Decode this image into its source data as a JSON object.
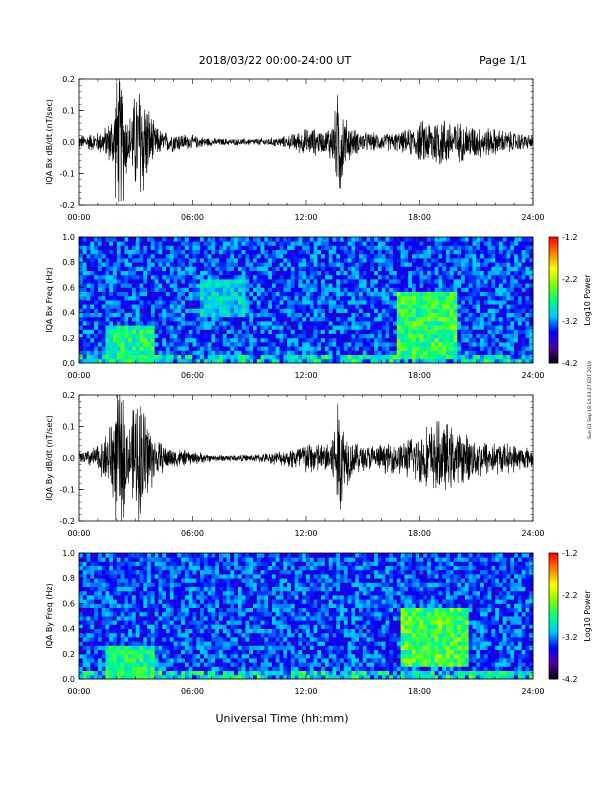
{
  "header": {
    "title": "2018/03/22  00:00-24:00 UT",
    "page": "Page 1/1"
  },
  "footer": {
    "xlabel": "Universal Time (hh:mm)",
    "side_note": "Sun 01 Sep 19:14:03:27 EDT 2019"
  },
  "chart_data": [
    {
      "type": "line",
      "name": "bx-waveform",
      "ylabel": "IQA Bx dB/dt (nT/sec)",
      "xlim": [
        0,
        24
      ],
      "ylim": [
        -0.2,
        0.2
      ],
      "x_ticks": [
        "00:00",
        "06:00",
        "12:00",
        "18:00",
        "24:00"
      ],
      "y_ticks": [
        "-0.2",
        "-0.1",
        "0.0",
        "0.1",
        "0.2"
      ],
      "y_tick_values": [
        -0.2,
        -0.1,
        0.0,
        0.1,
        0.2
      ],
      "envelope_hours": [
        0,
        0.5,
        1,
        1.5,
        1.8,
        2,
        2.3,
        2.6,
        3,
        3.3,
        3.6,
        4,
        4.5,
        5,
        6,
        7,
        8,
        9,
        10,
        11,
        11.5,
        12,
        12.5,
        13,
        13.5,
        13.8,
        14,
        14.5,
        15,
        16,
        17,
        17.5,
        18,
        18.5,
        19,
        19.5,
        20,
        21,
        22,
        23,
        24
      ],
      "envelope_amplitude": [
        0.02,
        0.025,
        0.03,
        0.05,
        0.09,
        0.2,
        0.2,
        0.06,
        0.16,
        0.2,
        0.12,
        0.05,
        0.03,
        0.03,
        0.02,
        0.012,
        0.01,
        0.01,
        0.012,
        0.018,
        0.03,
        0.04,
        0.04,
        0.03,
        0.08,
        0.2,
        0.08,
        0.04,
        0.03,
        0.025,
        0.03,
        0.04,
        0.06,
        0.07,
        0.08,
        0.07,
        0.06,
        0.05,
        0.04,
        0.03,
        0.02
      ]
    },
    {
      "type": "heatmap",
      "name": "bx-spectrogram",
      "ylabel": "IQA Bx Freq (Hz)",
      "xlim": [
        0,
        24
      ],
      "ylim": [
        0,
        1.0
      ],
      "x_ticks": [
        "00:00",
        "06:00",
        "12:00",
        "18:00",
        "24:00"
      ],
      "y_ticks": [
        "0.0",
        "0.2",
        "0.4",
        "0.6",
        "0.8",
        "1.0"
      ],
      "y_tick_values": [
        0,
        0.2,
        0.4,
        0.6,
        0.8,
        1.0
      ],
      "colorbar": {
        "label": "Log10 Power",
        "ticks": [
          "-1.2",
          "-2.2",
          "-3.2",
          "-4.2"
        ],
        "tick_values": [
          -1.2,
          -2.2,
          -3.2,
          -4.2
        ],
        "range": [
          -4.2,
          -1.2
        ],
        "colors": [
          "#000000",
          "#5000a0",
          "#0000ff",
          "#00c8ff",
          "#00ff80",
          "#80ff00",
          "#ffff00",
          "#ff8000",
          "#ff0000"
        ]
      },
      "features": [
        {
          "t0": 6.5,
          "t1": 8.8,
          "f0": 0.38,
          "f1": 0.68,
          "level": 0.45
        },
        {
          "t0": 16.8,
          "t1": 20.0,
          "f0": 0.05,
          "f1": 0.55,
          "level": 0.6
        },
        {
          "t0": 1.5,
          "t1": 4.0,
          "f0": 0.0,
          "f1": 0.3,
          "level": 0.55
        }
      ]
    },
    {
      "type": "line",
      "name": "by-waveform",
      "ylabel": "IQA By dB/dt (nT/sec)",
      "xlim": [
        0,
        24
      ],
      "ylim": [
        -0.2,
        0.2
      ],
      "x_ticks": [
        "00:00",
        "06:00",
        "12:00",
        "18:00",
        "24:00"
      ],
      "y_ticks": [
        "-0.2",
        "-0.1",
        "0.0",
        "0.1",
        "0.2"
      ],
      "y_tick_values": [
        -0.2,
        -0.1,
        0.0,
        0.1,
        0.2
      ],
      "envelope_hours": [
        0,
        0.5,
        1,
        1.5,
        1.8,
        2,
        2.3,
        2.6,
        3,
        3.3,
        3.6,
        4,
        4.5,
        5,
        6,
        7,
        8,
        9,
        10,
        11,
        11.5,
        12,
        12.5,
        13,
        13.5,
        13.8,
        14,
        14.5,
        15,
        16,
        17,
        17.5,
        18,
        18.5,
        19,
        19.5,
        20,
        21,
        22,
        23,
        24
      ],
      "envelope_amplitude": [
        0.02,
        0.025,
        0.04,
        0.08,
        0.15,
        0.2,
        0.2,
        0.08,
        0.18,
        0.2,
        0.14,
        0.06,
        0.04,
        0.03,
        0.02,
        0.01,
        0.01,
        0.01,
        0.015,
        0.025,
        0.04,
        0.05,
        0.05,
        0.04,
        0.1,
        0.2,
        0.1,
        0.05,
        0.04,
        0.04,
        0.05,
        0.06,
        0.08,
        0.1,
        0.11,
        0.1,
        0.08,
        0.06,
        0.05,
        0.04,
        0.03
      ]
    },
    {
      "type": "heatmap",
      "name": "by-spectrogram",
      "ylabel": "IQA By Freq (Hz)",
      "xlim": [
        0,
        24
      ],
      "ylim": [
        0,
        1.0
      ],
      "x_ticks": [
        "00:00",
        "06:00",
        "12:00",
        "18:00",
        "24:00"
      ],
      "y_ticks": [
        "0.0",
        "0.2",
        "0.4",
        "0.6",
        "0.8",
        "1.0"
      ],
      "y_tick_values": [
        0,
        0.2,
        0.4,
        0.6,
        0.8,
        1.0
      ],
      "colorbar": {
        "label": "Log10 Power",
        "ticks": [
          "-1.2",
          "-2.2",
          "-3.2",
          "-4.2"
        ],
        "tick_values": [
          -1.2,
          -2.2,
          -3.2,
          -4.2
        ],
        "range": [
          -4.2,
          -1.2
        ],
        "colors": [
          "#000000",
          "#5000a0",
          "#0000ff",
          "#00c8ff",
          "#00ff80",
          "#80ff00",
          "#ffff00",
          "#ff8000",
          "#ff0000"
        ]
      },
      "features": [
        {
          "t0": 17.0,
          "t1": 20.5,
          "f0": 0.1,
          "f1": 0.55,
          "level": 0.62
        },
        {
          "t0": 1.5,
          "t1": 4.0,
          "f0": 0.0,
          "f1": 0.25,
          "level": 0.55
        }
      ]
    }
  ]
}
